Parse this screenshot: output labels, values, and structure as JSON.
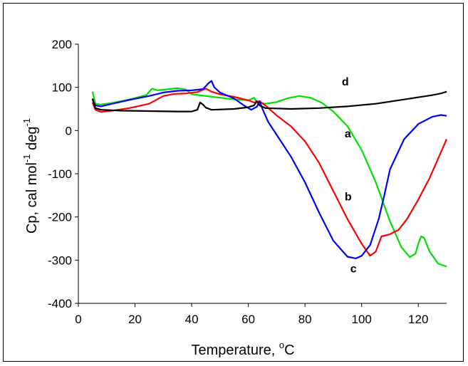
{
  "chart_data": {
    "type": "line",
    "title": "",
    "xlabel": "Temperature, ",
    "xlabel_unit": "C",
    "xlabel_sup": "o",
    "ylabel": "Cp, cal mol",
    "ylabel_sup1": "-1",
    "ylabel_mid": " deg",
    "ylabel_sup2": "-1",
    "xlim": [
      0,
      130
    ],
    "ylim": [
      -400,
      200
    ],
    "x_ticks": [
      "0",
      "20",
      "40",
      "60",
      "80",
      "100",
      "120"
    ],
    "y_ticks": [
      "200",
      "100",
      "0",
      "-100",
      "-200",
      "-300",
      "-400"
    ],
    "grid": false,
    "legend": "none",
    "series": [
      {
        "name": "a",
        "color": "#00e000",
        "points": [
          [
            5,
            90
          ],
          [
            6,
            62
          ],
          [
            8,
            60
          ],
          [
            12,
            64
          ],
          [
            18,
            72
          ],
          [
            24,
            82
          ],
          [
            26,
            97
          ],
          [
            28,
            93
          ],
          [
            32,
            96
          ],
          [
            35,
            98
          ],
          [
            38,
            95
          ],
          [
            40,
            84
          ],
          [
            45,
            80
          ],
          [
            50,
            76
          ],
          [
            55,
            72
          ],
          [
            58,
            71
          ],
          [
            60,
            70
          ],
          [
            62,
            76
          ],
          [
            63,
            66
          ],
          [
            66,
            62
          ],
          [
            70,
            66
          ],
          [
            74,
            75
          ],
          [
            78,
            80
          ],
          [
            82,
            76
          ],
          [
            86,
            64
          ],
          [
            90,
            44
          ],
          [
            95,
            10
          ],
          [
            100,
            -45
          ],
          [
            105,
            -120
          ],
          [
            110,
            -210
          ],
          [
            114,
            -270
          ],
          [
            117,
            -293
          ],
          [
            119,
            -285
          ],
          [
            120,
            -262
          ],
          [
            121,
            -245
          ],
          [
            122,
            -248
          ],
          [
            124,
            -280
          ],
          [
            127,
            -308
          ],
          [
            130,
            -315
          ]
        ]
      },
      {
        "name": "b",
        "color": "#ff0000",
        "points": [
          [
            5,
            65
          ],
          [
            6,
            48
          ],
          [
            8,
            43
          ],
          [
            12,
            46
          ],
          [
            18,
            52
          ],
          [
            25,
            62
          ],
          [
            30,
            80
          ],
          [
            34,
            85
          ],
          [
            38,
            86
          ],
          [
            42,
            89
          ],
          [
            45,
            97
          ],
          [
            47,
            90
          ],
          [
            50,
            84
          ],
          [
            55,
            78
          ],
          [
            60,
            70
          ],
          [
            62,
            65
          ],
          [
            64,
            68
          ],
          [
            66,
            58
          ],
          [
            70,
            35
          ],
          [
            75,
            10
          ],
          [
            80,
            -25
          ],
          [
            85,
            -75
          ],
          [
            90,
            -140
          ],
          [
            95,
            -205
          ],
          [
            100,
            -262
          ],
          [
            103,
            -290
          ],
          [
            105,
            -280
          ],
          [
            107,
            -245
          ],
          [
            110,
            -240
          ],
          [
            113,
            -230
          ],
          [
            116,
            -205
          ],
          [
            120,
            -160
          ],
          [
            124,
            -110
          ],
          [
            128,
            -50
          ],
          [
            130,
            -20
          ]
        ]
      },
      {
        "name": "c",
        "color": "#0000ff",
        "points": [
          [
            5,
            72
          ],
          [
            6,
            58
          ],
          [
            8,
            56
          ],
          [
            12,
            62
          ],
          [
            18,
            71
          ],
          [
            25,
            80
          ],
          [
            30,
            88
          ],
          [
            35,
            92
          ],
          [
            40,
            93
          ],
          [
            44,
            96
          ],
          [
            46,
            110
          ],
          [
            47,
            115
          ],
          [
            48,
            100
          ],
          [
            50,
            88
          ],
          [
            55,
            74
          ],
          [
            58,
            60
          ],
          [
            61,
            48
          ],
          [
            63,
            55
          ],
          [
            64,
            68
          ],
          [
            65,
            50
          ],
          [
            67,
            20
          ],
          [
            70,
            -10
          ],
          [
            75,
            -60
          ],
          [
            80,
            -120
          ],
          [
            85,
            -190
          ],
          [
            90,
            -255
          ],
          [
            95,
            -292
          ],
          [
            98,
            -296
          ],
          [
            100,
            -290
          ],
          [
            103,
            -265
          ],
          [
            106,
            -205
          ],
          [
            108,
            -150
          ],
          [
            110,
            -90
          ],
          [
            115,
            -20
          ],
          [
            120,
            15
          ],
          [
            125,
            32
          ],
          [
            128,
            36
          ],
          [
            130,
            34
          ]
        ]
      },
      {
        "name": "d",
        "color": "#000000",
        "points": [
          [
            5,
            74
          ],
          [
            6,
            52
          ],
          [
            8,
            48
          ],
          [
            15,
            46
          ],
          [
            25,
            45
          ],
          [
            35,
            44
          ],
          [
            40,
            44
          ],
          [
            42,
            48
          ],
          [
            43,
            65
          ],
          [
            44,
            60
          ],
          [
            45,
            53
          ],
          [
            47,
            48
          ],
          [
            55,
            50
          ],
          [
            60,
            54
          ],
          [
            62,
            58
          ],
          [
            63,
            68
          ],
          [
            64,
            58
          ],
          [
            66,
            52
          ],
          [
            75,
            50
          ],
          [
            85,
            52
          ],
          [
            95,
            56
          ],
          [
            105,
            62
          ],
          [
            115,
            72
          ],
          [
            125,
            82
          ],
          [
            128,
            86
          ],
          [
            130,
            90
          ]
        ]
      }
    ],
    "annotations": [
      {
        "text": "d",
        "x": 93,
        "y": 104
      },
      {
        "text": "a",
        "x": 94,
        "y": -16
      },
      {
        "text": "b",
        "x": 94,
        "y": -162
      },
      {
        "text": "c",
        "x": 96,
        "y": -328
      }
    ]
  }
}
